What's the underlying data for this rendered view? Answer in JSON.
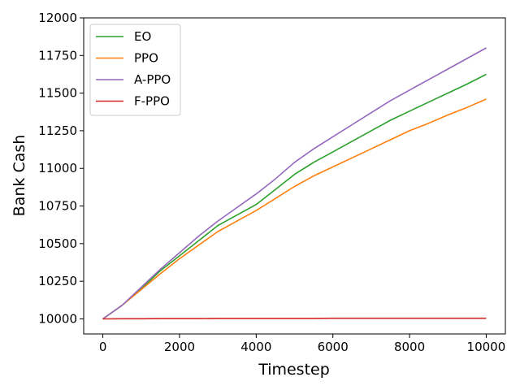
{
  "chart_data": {
    "type": "line",
    "title": "",
    "xlabel": "Timestep",
    "ylabel": "Bank Cash",
    "xlim": [
      -500,
      10500
    ],
    "ylim": [
      9900,
      12000
    ],
    "xticks": [
      0,
      2000,
      4000,
      6000,
      8000,
      10000
    ],
    "xtick_labels": [
      "0",
      "2000",
      "4000",
      "6000",
      "8000",
      "10000"
    ],
    "yticks": [
      10000,
      10250,
      10500,
      10750,
      11000,
      11250,
      11500,
      11750,
      12000
    ],
    "ytick_labels": [
      "10000",
      "10250",
      "10500",
      "10750",
      "11000",
      "11250",
      "11500",
      "11750",
      "12000"
    ],
    "grid": false,
    "legend_position": "top-left",
    "x": [
      0,
      500,
      1000,
      1500,
      2000,
      2500,
      3000,
      3500,
      4000,
      4500,
      5000,
      5500,
      6000,
      6500,
      7000,
      7500,
      8000,
      8500,
      9000,
      9500,
      10000
    ],
    "series": [
      {
        "name": "EO",
        "color": "#2ca02c",
        "values": [
          10000,
          10090,
          10200,
          10320,
          10420,
          10520,
          10620,
          10690,
          10760,
          10860,
          10960,
          11040,
          11110,
          11180,
          11250,
          11320,
          11380,
          11440,
          11500,
          11560,
          11625
        ]
      },
      {
        "name": "PPO",
        "color": "#ff7f0e",
        "values": [
          10000,
          10090,
          10195,
          10300,
          10400,
          10490,
          10580,
          10650,
          10720,
          10800,
          10880,
          10950,
          11010,
          11070,
          11130,
          11190,
          11250,
          11300,
          11355,
          11405,
          11460
        ]
      },
      {
        "name": "A-PPO",
        "color": "#9467bd",
        "values": [
          10000,
          10090,
          10210,
          10330,
          10440,
          10550,
          10650,
          10740,
          10830,
          10930,
          11040,
          11130,
          11210,
          11290,
          11370,
          11450,
          11520,
          11590,
          11660,
          11730,
          11800
        ]
      },
      {
        "name": "F-PPO",
        "color": "#d62728",
        "values": [
          10000,
          10001,
          10001,
          10002,
          10002,
          10002,
          10003,
          10003,
          10003,
          10003,
          10003,
          10003,
          10004,
          10004,
          10004,
          10004,
          10004,
          10004,
          10004,
          10004,
          10004
        ]
      }
    ]
  }
}
